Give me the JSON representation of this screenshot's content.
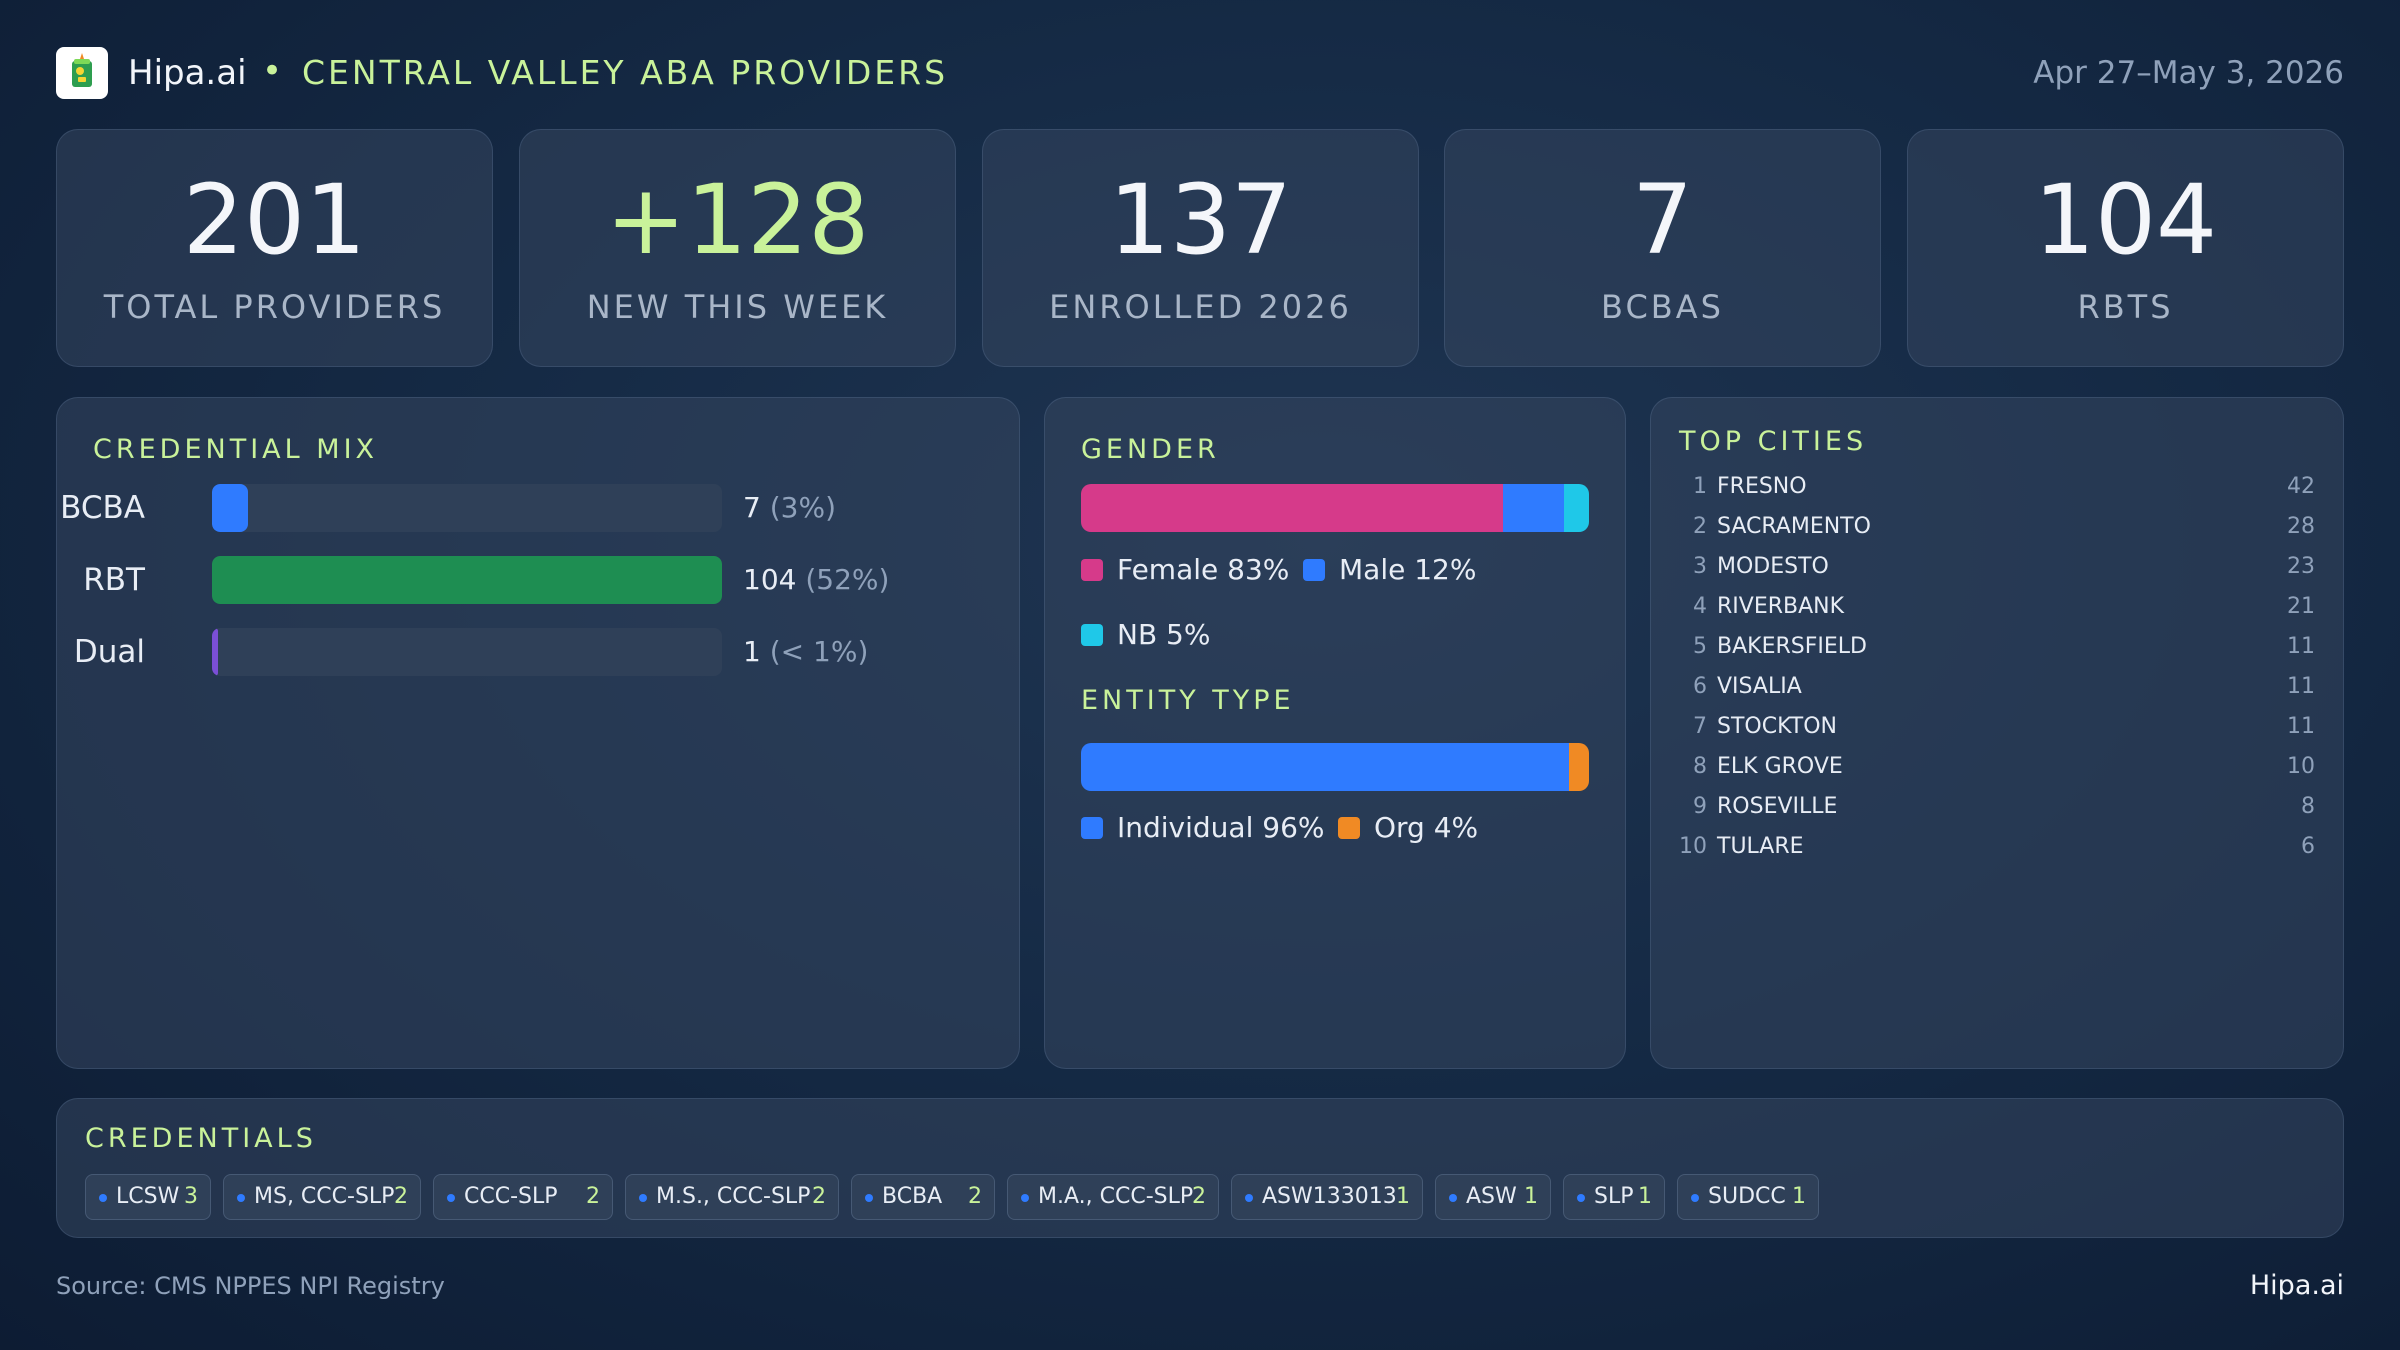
{
  "header": {
    "brand": "Hipa.ai",
    "separator": "•",
    "title": "CENTRAL VALLEY ABA PROVIDERS",
    "date_range": "Apr 27–May 3, 2026"
  },
  "stats": [
    {
      "value": "201",
      "label": "TOTAL PROVIDERS"
    },
    {
      "value": "+128",
      "label": "NEW THIS WEEK"
    },
    {
      "value": "137",
      "label": "ENROLLED 2026"
    },
    {
      "value": "7",
      "label": "BCBAS"
    },
    {
      "value": "104",
      "label": "RBTS"
    }
  ],
  "credential_mix": {
    "title": "CREDENTIAL MIX",
    "rows": [
      {
        "name": "BCBA",
        "count": "7",
        "pct": "(3%)",
        "fraction": 0.07,
        "color": "#2f7bff"
      },
      {
        "name": "RBT",
        "count": "104",
        "pct": "(52%)",
        "fraction": 1.0,
        "color": "#1e8e52"
      },
      {
        "name": "Dual",
        "count": "1",
        "pct": "(< 1%)",
        "fraction": 0.01,
        "color": "#7b4fd6"
      }
    ]
  },
  "gender": {
    "title": "GENDER",
    "segments": [
      {
        "label": "Female 83%",
        "share": 83,
        "color": "#d63a8a"
      },
      {
        "label": "Male 12%",
        "share": 12,
        "color": "#2f7bff"
      },
      {
        "label": "NB 5%",
        "share": 5,
        "color": "#1fc8e8"
      }
    ]
  },
  "entity_type": {
    "title": "ENTITY TYPE",
    "segments": [
      {
        "label": "Individual 96%",
        "share": 96,
        "color": "#2f7bff"
      },
      {
        "label": "Org 4%",
        "share": 4,
        "color": "#f08a24"
      }
    ]
  },
  "top_cities": {
    "title": "TOP CITIES",
    "rows": [
      {
        "rank": "1",
        "name": "FRESNO",
        "count": "42"
      },
      {
        "rank": "2",
        "name": "SACRAMENTO",
        "count": "28"
      },
      {
        "rank": "3",
        "name": "MODESTO",
        "count": "23"
      },
      {
        "rank": "4",
        "name": "RIVERBANK",
        "count": "21"
      },
      {
        "rank": "5",
        "name": "BAKERSFIELD",
        "count": "11"
      },
      {
        "rank": "6",
        "name": "VISALIA",
        "count": "11"
      },
      {
        "rank": "7",
        "name": "STOCKTON",
        "count": "11"
      },
      {
        "rank": "8",
        "name": "ELK GROVE",
        "count": "10"
      },
      {
        "rank": "9",
        "name": "ROSEVILLE",
        "count": "8"
      },
      {
        "rank": "10",
        "name": "TULARE",
        "count": "6"
      }
    ]
  },
  "credentials": {
    "title": "CREDENTIALS",
    "chips": [
      {
        "name": "LCSW",
        "count": "3"
      },
      {
        "name": "MS, CCC-SLP",
        "count": "2"
      },
      {
        "name": "CCC-SLP",
        "count": "2"
      },
      {
        "name": "M.S., CCC-SLP",
        "count": "2"
      },
      {
        "name": "BCBA",
        "count": "2"
      },
      {
        "name": "M.A., CCC-SLP",
        "count": "2"
      },
      {
        "name": "ASW133013",
        "count": "1"
      },
      {
        "name": "ASW",
        "count": "1"
      },
      {
        "name": "SLP",
        "count": "1"
      },
      {
        "name": "SUDCC",
        "count": "1"
      }
    ]
  },
  "footer": {
    "source": "Source: CMS NPPES NPI Registry",
    "brand": "Hipa.ai"
  }
}
